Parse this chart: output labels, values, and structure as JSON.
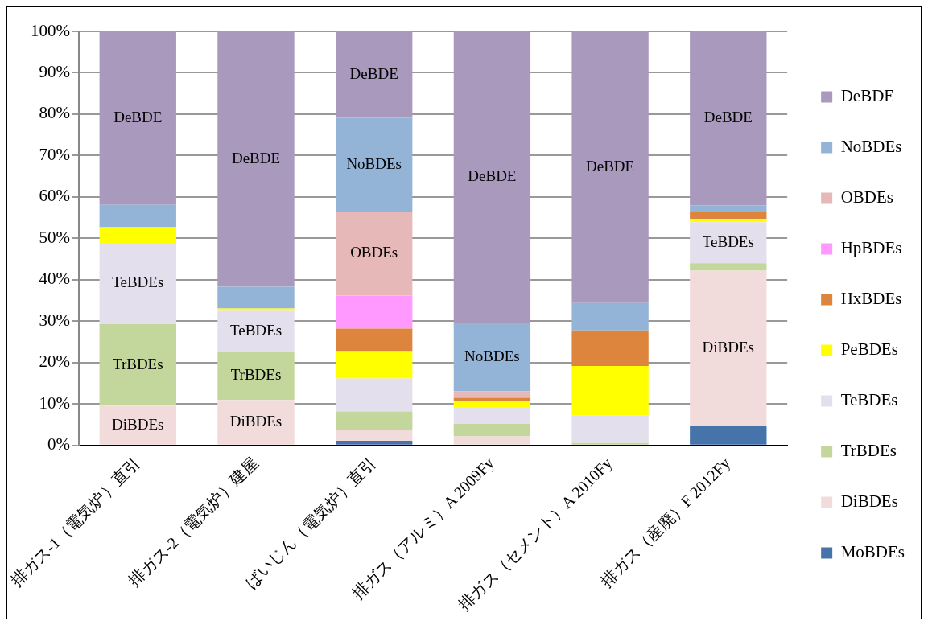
{
  "chart_data": {
    "type": "bar",
    "stacked": true,
    "categories": [
      "排ガス-1（電気炉）直引",
      "排ガス-2（電気炉）建屋",
      "ばいじん（電気炉）直引",
      "排ガス（アルミ）A 2009Fy",
      "排ガス（セメント）A 2010Fy",
      "排ガス（産廃）F 2012Fy"
    ],
    "series": [
      {
        "name": "MoBDEs",
        "color": "#4674aa",
        "values": [
          0,
          0,
          1.1,
          0,
          0,
          4.7
        ]
      },
      {
        "name": "DiBDEs",
        "color": "#f2dcdb",
        "values": [
          9.6,
          11.0,
          2.6,
          2.2,
          0,
          37.5
        ],
        "value_labels": [
          "DiBDEs",
          "DiBDEs",
          null,
          null,
          null,
          "DiBDEs"
        ]
      },
      {
        "name": "TrBDEs",
        "color": "#c3d69b",
        "values": [
          19.7,
          11.6,
          4.5,
          3.0,
          0.6,
          1.8
        ],
        "value_labels": [
          "TrBDEs",
          "TrBDEs",
          null,
          null,
          null,
          null
        ]
      },
      {
        "name": "TeBDEs",
        "color": "#e4dfec",
        "values": [
          19.6,
          9.9,
          8.0,
          3.9,
          6.7,
          9.9
        ],
        "value_labels": [
          "TeBDEs",
          "TeBDEs",
          null,
          null,
          null,
          "TeBDEs"
        ]
      },
      {
        "name": "PeBDEs",
        "color": "#ffff00",
        "values": [
          3.8,
          0.6,
          6.6,
          1.7,
          11.9,
          0.8
        ]
      },
      {
        "name": "HxBDEs",
        "color": "#dd853c",
        "values": [
          0,
          0,
          5.4,
          0.7,
          8.6,
          1.6
        ]
      },
      {
        "name": "HpBDEs",
        "color": "#ff99ff",
        "values": [
          0,
          0,
          8.0,
          0,
          0,
          0
        ]
      },
      {
        "name": "OBDEs",
        "color": "#e6b9b8",
        "values": [
          0,
          0,
          20.2,
          1.6,
          0,
          0
        ],
        "value_labels": [
          null,
          null,
          "OBDEs",
          null,
          null,
          null
        ]
      },
      {
        "name": "NoBDEs",
        "color": "#93b3d7",
        "values": [
          5.4,
          5.2,
          22.7,
          16.6,
          6.6,
          1.7
        ],
        "value_labels": [
          null,
          null,
          "NoBDEs",
          "NoBDEs",
          null,
          null
        ]
      },
      {
        "name": "DeBDE",
        "color": "#a899bd",
        "values": [
          41.9,
          61.7,
          20.9,
          70.3,
          65.6,
          42.0
        ],
        "value_labels": [
          "DeBDE",
          "DeBDE",
          "DeBDE",
          "DeBDE",
          "DeBDE",
          "DeBDE"
        ]
      }
    ],
    "ylim": [
      0,
      100
    ],
    "yticks": [
      {
        "value": 0,
        "label": "0%"
      },
      {
        "value": 10,
        "label": "10%"
      },
      {
        "value": 20,
        "label": "20%"
      },
      {
        "value": 30,
        "label": "30%"
      },
      {
        "value": 40,
        "label": "40%"
      },
      {
        "value": 50,
        "label": "50%"
      },
      {
        "value": 60,
        "label": "60%"
      },
      {
        "value": 70,
        "label": "70%"
      },
      {
        "value": 80,
        "label": "80%"
      },
      {
        "value": 90,
        "label": "90%"
      },
      {
        "value": 100,
        "label": "100%"
      }
    ],
    "grid": "y",
    "legend": "right"
  }
}
